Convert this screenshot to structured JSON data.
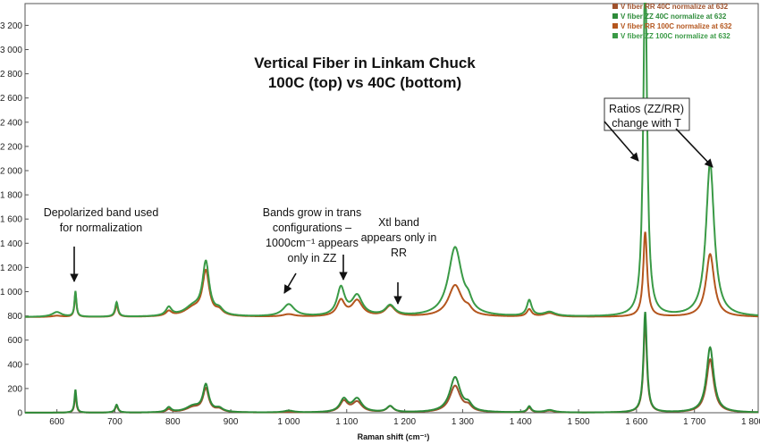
{
  "chart_data": {
    "type": "line",
    "title_lines": [
      "Vertical Fiber in Linkam Chuck",
      "100C (top) vs 40C (bottom)"
    ],
    "xlabel": "Raman shift (cm⁻¹)",
    "ylabel": "",
    "xlim": [
      545,
      1810
    ],
    "ylim": [
      0,
      3380
    ],
    "x_ticks": [
      600,
      700,
      800,
      900,
      1000,
      1100,
      1200,
      1300,
      1400,
      1500,
      1600,
      1700,
      1800
    ],
    "x_tick_labels": [
      "600",
      "700",
      "800",
      "900",
      "1 000",
      "1 100",
      "1 200",
      "1 300",
      "1 400",
      "1 500",
      "1 600",
      "1 700",
      "1 800"
    ],
    "y_ticks": [
      0,
      200,
      400,
      600,
      800,
      1000,
      1200,
      1400,
      1600,
      1800,
      2000,
      2200,
      2400,
      2600,
      2800,
      3000,
      3200
    ],
    "y_tick_labels": [
      "0",
      "200",
      "400",
      "600",
      "800",
      "1 000",
      "1 200",
      "1 400",
      "1 600",
      "1 800",
      "2 000",
      "2 200",
      "2 400",
      "2 600",
      "2 800",
      "3 000",
      "3 200"
    ],
    "grid": false,
    "legend_position": "top-right",
    "series": [
      {
        "name": "V fiber RR 40C normalize at 632",
        "color": "#a0522d",
        "baseline": 0,
        "peaks": [
          [
            632,
            150,
            2
          ],
          [
            703,
            55,
            3
          ],
          [
            793,
            25,
            5
          ],
          [
            835,
            40,
            15
          ],
          [
            857,
            190,
            6
          ],
          [
            880,
            25,
            8
          ],
          [
            1000,
            5,
            10
          ],
          [
            1095,
            90,
            8
          ],
          [
            1118,
            85,
            10
          ],
          [
            1175,
            50,
            7
          ],
          [
            1287,
            220,
            11
          ],
          [
            1310,
            40,
            7
          ],
          [
            1415,
            40,
            4
          ],
          [
            1450,
            15,
            10
          ],
          [
            1615,
            750,
            3.5
          ],
          [
            1727,
            440,
            7.5
          ]
        ]
      },
      {
        "name": "V fiber ZZ 40C normalize at 632",
        "color": "#2e8b3a",
        "baseline": 0,
        "peaks": [
          [
            632,
            190,
            2
          ],
          [
            703,
            65,
            3
          ],
          [
            793,
            40,
            5
          ],
          [
            835,
            50,
            15
          ],
          [
            857,
            220,
            6
          ],
          [
            880,
            30,
            8
          ],
          [
            1000,
            15,
            10
          ],
          [
            1095,
            105,
            8
          ],
          [
            1118,
            110,
            10
          ],
          [
            1175,
            50,
            7
          ],
          [
            1287,
            290,
            11
          ],
          [
            1310,
            50,
            7
          ],
          [
            1415,
            50,
            4
          ],
          [
            1450,
            20,
            10
          ],
          [
            1615,
            830,
            3.5
          ],
          [
            1727,
            540,
            7.5
          ]
        ]
      },
      {
        "name": "V fiber RR 100C normalize at 632",
        "color": "#b4561e",
        "baseline": 790,
        "peaks": [
          [
            600,
            10,
            10
          ],
          [
            632,
            200,
            2
          ],
          [
            703,
            95,
            3
          ],
          [
            793,
            40,
            6
          ],
          [
            835,
            65,
            18
          ],
          [
            857,
            360,
            7
          ],
          [
            880,
            40,
            8
          ],
          [
            1000,
            20,
            12
          ],
          [
            1090,
            130,
            8
          ],
          [
            1118,
            130,
            11
          ],
          [
            1175,
            85,
            10
          ],
          [
            1287,
            260,
            14
          ],
          [
            1310,
            40,
            7
          ],
          [
            1415,
            60,
            5
          ],
          [
            1450,
            30,
            12
          ],
          [
            1615,
            700,
            4
          ],
          [
            1727,
            520,
            8.5
          ]
        ]
      },
      {
        "name": "V fiber ZZ 100C normalize at 632",
        "color": "#3a9a46",
        "baseline": 790,
        "peaks": [
          [
            600,
            40,
            10
          ],
          [
            632,
            210,
            2
          ],
          [
            703,
            120,
            3
          ],
          [
            793,
            70,
            6
          ],
          [
            835,
            75,
            18
          ],
          [
            857,
            430,
            7
          ],
          [
            880,
            45,
            8
          ],
          [
            1000,
            100,
            12
          ],
          [
            1090,
            230,
            8
          ],
          [
            1118,
            165,
            11
          ],
          [
            1175,
            85,
            10
          ],
          [
            1287,
            570,
            14
          ],
          [
            1310,
            70,
            7
          ],
          [
            1415,
            130,
            5
          ],
          [
            1450,
            35,
            12
          ],
          [
            1615,
            2880,
            4
          ],
          [
            1727,
            1270,
            8.5
          ]
        ]
      }
    ],
    "annotations": [
      {
        "lines": [
          "Depolarized band used",
          "for normalization"
        ]
      },
      {
        "lines": [
          "Bands grow in trans",
          "configurations –",
          "1000cm⁻¹ appears",
          "only in ZZ"
        ]
      },
      {
        "lines": [
          "Xtl band",
          "appears only in",
          "RR"
        ]
      },
      {
        "lines": [
          "Ratios  (ZZ/RR)",
          "change with T"
        ]
      }
    ]
  }
}
